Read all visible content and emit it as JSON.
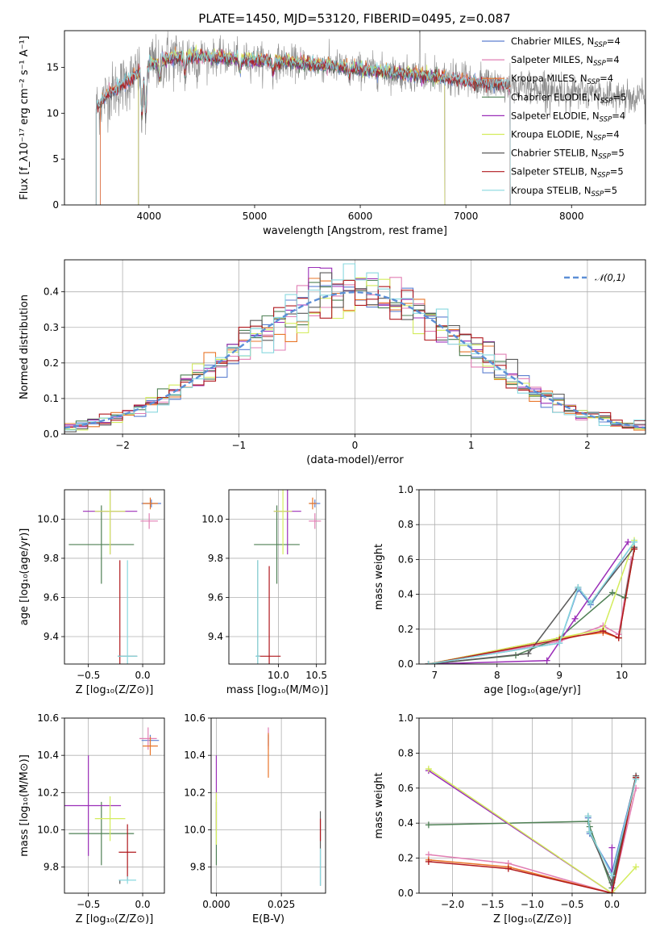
{
  "title": "PLATE=1450, MJD=53120, FIBERID=0495, z=0.087",
  "series_colors": {
    "Chabrier MILES": "#5d7fd0",
    "Salpeter MILES": "#e17fb4",
    "Kroupa MILES": "#e8762a",
    "Chabrier ELODIE": "#4f8055",
    "Salpeter ELODIE": "#9b2eb8",
    "Kroupa ELODIE": "#d3ec5c",
    "Chabrier STELIB": "#5a5a5a",
    "Salpeter STELIB": "#b0191e",
    "Kroupa STELIB": "#88d8df"
  },
  "chart_data": [
    {
      "id": "spectrum",
      "type": "line",
      "xlabel": "wavelength [Angstrom, rest frame]",
      "ylabel": "Flux [f_λ10⁻¹⁷ erg cm⁻² s⁻¹ A⁻¹]",
      "xlim": [
        3200,
        8700
      ],
      "ylim": [
        0,
        19
      ],
      "xticks": [
        4000,
        5000,
        6000,
        7000,
        8000
      ],
      "yticks": [
        0,
        5,
        10,
        15
      ],
      "grid": false,
      "legend_position": "top-right",
      "legend": [
        {
          "base": "Chabrier MILES, N",
          "sub": "SSP",
          "tail": "=4",
          "color": "#5d7fd0"
        },
        {
          "base": "Salpeter MILES, N",
          "sub": "SSP",
          "tail": "=4",
          "color": "#e17fb4"
        },
        {
          "base": "Kroupa MILES, N",
          "sub": "SSP",
          "tail": "=4",
          "color": "#e8762a"
        },
        {
          "base": "Chabrier ELODIE, N",
          "sub": "SSP",
          "tail": "=5",
          "color": "#4f8055"
        },
        {
          "base": "Salpeter ELODIE, N",
          "sub": "SSP",
          "tail": "=4",
          "color": "#9b2eb8"
        },
        {
          "base": "Kroupa ELODIE, N",
          "sub": "SSP",
          "tail": "=4",
          "color": "#d3ec5c"
        },
        {
          "base": "Chabrier STELIB, N",
          "sub": "SSP",
          "tail": "=5",
          "color": "#5a5a5a"
        },
        {
          "base": "Salpeter STELIB, N",
          "sub": "SSP",
          "tail": "=5",
          "color": "#b0191e"
        },
        {
          "base": "Kroupa STELIB, N",
          "sub": "SSP",
          "tail": "=5",
          "color": "#88d8df"
        }
      ],
      "data_color": "#8a8a8a",
      "data_range": [
        3500,
        8700
      ],
      "continuum_x": [
        3500,
        3600,
        3800,
        4000,
        4200,
        4500,
        5000,
        5500,
        6000,
        6500,
        7000,
        7500,
        8000,
        8700
      ],
      "continuum_y": [
        10.5,
        12.0,
        13.5,
        15.3,
        16.0,
        16.2,
        15.8,
        15.4,
        14.8,
        14.2,
        13.5,
        12.9,
        12.3,
        11.7
      ],
      "model_ranges": {
        "MILES": [
          3540,
          7420
        ],
        "ELODIE": [
          3900,
          6800
        ],
        "STELIB": [
          3500,
          7420
        ]
      },
      "features": [
        {
          "x": 3934,
          "depth": 6.0
        },
        {
          "x": 3969,
          "depth": 6.5
        },
        {
          "x": 4102,
          "depth": 2.5
        },
        {
          "x": 4340,
          "depth": 2.0
        },
        {
          "x": 4861,
          "depth": 1.5
        },
        {
          "x": 5175,
          "depth": 1.5
        },
        {
          "x": 5893,
          "depth": 1.2
        }
      ]
    },
    {
      "id": "residuals",
      "type": "histogram",
      "xlabel": "(data-model)/error",
      "ylabel": "Normed distribution",
      "xlim": [
        -2.5,
        2.5
      ],
      "ylim": [
        0,
        0.49
      ],
      "xticks": [
        -2,
        -1,
        0,
        1,
        2
      ],
      "yticks": [
        0.0,
        0.1,
        0.2,
        0.3,
        0.4
      ],
      "grid": true,
      "bin_width": 0.1,
      "legend_position": "top-right",
      "reference_curve": {
        "label": "𝒩(0,1)",
        "mean": 0,
        "sigma": 1,
        "color": "#5c8fd6"
      }
    },
    {
      "id": "age-vs-Z",
      "type": "errorbar",
      "xlabel": "Z [log₁₀(Z/Z⊙)]",
      "ylabel": "age  [log₁₀(age/yr)]",
      "xlim": [
        -0.72,
        0.2
      ],
      "ylim": [
        9.26,
        10.15
      ],
      "xticks": [
        -0.5,
        0.0
      ],
      "yticks": [
        9.4,
        9.6,
        9.8,
        10.0
      ],
      "grid": true,
      "points": [
        {
          "series": "Chabrier MILES",
          "x": 0.08,
          "xerr": 0.09,
          "y": 10.08,
          "yerr": 0.02
        },
        {
          "series": "Salpeter MILES",
          "x": 0.06,
          "xerr": 0.08,
          "y": 9.99,
          "yerr": 0.04
        },
        {
          "series": "Kroupa MILES",
          "x": 0.07,
          "xerr": 0.07,
          "y": 10.08,
          "yerr": 0.03
        },
        {
          "series": "Chabrier ELODIE",
          "x": -0.38,
          "xerr": 0.3,
          "y": 9.87,
          "yerr": 0.2
        },
        {
          "series": "Salpeter ELODIE",
          "x": -0.3,
          "xerr": 0.25,
          "y": 10.04,
          "yerr": 0.22
        },
        {
          "series": "Kroupa ELODIE",
          "x": -0.3,
          "xerr": 0.14,
          "y": 10.04,
          "yerr": 0.22
        },
        {
          "series": "Chabrier STELIB",
          "x": -0.14,
          "xerr": 0.09,
          "y": 9.3,
          "yerr": 0.0
        },
        {
          "series": "Salpeter STELIB",
          "x": -0.21,
          "xerr": 0.0,
          "y": 9.3,
          "yerr": 0.49
        },
        {
          "series": "Kroupa STELIB",
          "x": -0.14,
          "xerr": 0.09,
          "y": 9.3,
          "yerr": 0.49
        }
      ]
    },
    {
      "id": "age-vs-mass",
      "type": "errorbar",
      "xlabel": "mass [log₁₀(M/M⊙)]",
      "ylabel": "",
      "xlim": [
        9.35,
        10.62
      ],
      "ylim": [
        9.26,
        10.15
      ],
      "xticks": [
        10.0,
        10.5
      ],
      "yticks": [
        9.4,
        9.6,
        9.8,
        10.0
      ],
      "grid": true,
      "points": [
        {
          "series": "Chabrier MILES",
          "x": 10.48,
          "xerr": 0.07,
          "y": 10.08,
          "yerr": 0.02
        },
        {
          "series": "Salpeter MILES",
          "x": 10.48,
          "xerr": 0.08,
          "y": 9.99,
          "yerr": 0.04
        },
        {
          "series": "Kroupa MILES",
          "x": 10.45,
          "xerr": 0.05,
          "y": 10.08,
          "yerr": 0.03
        },
        {
          "series": "Chabrier ELODIE",
          "x": 9.98,
          "xerr": 0.3,
          "y": 9.87,
          "yerr": 0.2
        },
        {
          "series": "Salpeter ELODIE",
          "x": 10.12,
          "xerr": 0.18,
          "y": 10.04,
          "yerr": 0.22
        },
        {
          "series": "Kroupa ELODIE",
          "x": 10.06,
          "xerr": 0.12,
          "y": 10.04,
          "yerr": 0.22
        },
        {
          "series": "Chabrier STELIB",
          "x": 9.73,
          "xerr": 0.02,
          "y": 9.3,
          "yerr": 0.49
        },
        {
          "series": "Salpeter STELIB",
          "x": 9.88,
          "xerr": 0.15,
          "y": 9.3,
          "yerr": 0.46
        },
        {
          "series": "Kroupa STELIB",
          "x": 9.73,
          "xerr": 0.03,
          "y": 9.3,
          "yerr": 0.49
        }
      ]
    },
    {
      "id": "mass-weight-vs-age",
      "type": "line",
      "xlabel": "age  [log₁₀(age/yr)]",
      "ylabel": "mass weight",
      "xlim": [
        6.75,
        10.38
      ],
      "ylim": [
        0,
        1
      ],
      "xticks": [
        7,
        8,
        9,
        10
      ],
      "yticks": [
        0.0,
        0.2,
        0.4,
        0.6,
        0.8,
        1.0
      ],
      "grid": true,
      "series": [
        {
          "name": "Chabrier MILES",
          "x": [
            6.9,
            9.0,
            9.3,
            9.5,
            10.2
          ],
          "y": [
            0.0,
            0.12,
            0.43,
            0.34,
            0.7
          ]
        },
        {
          "name": "Salpeter MILES",
          "x": [
            6.9,
            9.0,
            9.7,
            9.95,
            10.15
          ],
          "y": [
            0.0,
            0.13,
            0.22,
            0.17,
            0.6
          ]
        },
        {
          "name": "Kroupa MILES",
          "x": [
            6.9,
            9.0,
            9.7,
            9.95,
            10.2
          ],
          "y": [
            0.0,
            0.15,
            0.18,
            0.15,
            0.66
          ]
        },
        {
          "name": "Chabrier ELODIE",
          "x": [
            6.9,
            8.3,
            9.0,
            9.85,
            10.05,
            10.2
          ],
          "y": [
            0.0,
            0.05,
            0.15,
            0.41,
            0.38,
            0.66
          ]
        },
        {
          "name": "Salpeter ELODIE",
          "x": [
            6.9,
            8.8,
            9.25,
            10.1
          ],
          "y": [
            0.0,
            0.02,
            0.26,
            0.7
          ]
        },
        {
          "name": "Kroupa ELODIE",
          "x": [
            6.9,
            9.0,
            9.7,
            10.2
          ],
          "y": [
            0.0,
            0.15,
            0.2,
            0.71
          ]
        },
        {
          "name": "Chabrier STELIB",
          "x": [
            6.9,
            8.5,
            9.3,
            9.5,
            10.2
          ],
          "y": [
            0.0,
            0.06,
            0.44,
            0.35,
            0.67
          ]
        },
        {
          "name": "Salpeter STELIB",
          "x": [
            6.9,
            9.0,
            9.7,
            9.95,
            10.2
          ],
          "y": [
            0.0,
            0.14,
            0.19,
            0.15,
            0.66
          ]
        },
        {
          "name": "Kroupa STELIB",
          "x": [
            6.9,
            9.0,
            9.3,
            9.5,
            10.2
          ],
          "y": [
            0.0,
            0.12,
            0.44,
            0.35,
            0.7
          ]
        }
      ]
    },
    {
      "id": "mass-vs-Z",
      "type": "errorbar",
      "xlabel": "Z [log₁₀(Z/Z⊙)]",
      "ylabel": "mass [log₁₀(M/M⊙)]",
      "xlim": [
        -0.72,
        0.2
      ],
      "ylim": [
        9.66,
        10.6
      ],
      "xticks": [
        -0.5,
        0.0
      ],
      "yticks": [
        9.8,
        10.0,
        10.2,
        10.4,
        10.6
      ],
      "grid": true,
      "points": [
        {
          "series": "Chabrier MILES",
          "x": 0.07,
          "xerr": 0.08,
          "y": 10.48,
          "yerr": 0.03
        },
        {
          "series": "Salpeter MILES",
          "x": 0.05,
          "xerr": 0.08,
          "y": 10.49,
          "yerr": 0.06
        },
        {
          "series": "Kroupa MILES",
          "x": 0.07,
          "xerr": 0.07,
          "y": 10.45,
          "yerr": 0.05
        },
        {
          "series": "Chabrier ELODIE",
          "x": -0.38,
          "xerr": 0.3,
          "y": 9.98,
          "yerr": 0.17
        },
        {
          "series": "Salpeter ELODIE",
          "x": -0.5,
          "xerr": 0.3,
          "y": 10.13,
          "yerr": 0.27
        },
        {
          "series": "Kroupa ELODIE",
          "x": -0.3,
          "xerr": 0.14,
          "y": 10.06,
          "yerr": 0.12
        },
        {
          "series": "Chabrier STELIB",
          "x": -0.21,
          "xerr": 0.0,
          "y": 9.72,
          "yerr": 0.01
        },
        {
          "series": "Salpeter STELIB",
          "x": -0.14,
          "xerr": 0.08,
          "y": 9.88,
          "yerr": 0.15
        },
        {
          "series": "Kroupa STELIB",
          "x": -0.14,
          "xerr": 0.08,
          "y": 9.73,
          "yerr": 0.02
        }
      ]
    },
    {
      "id": "mass-vs-ebv",
      "type": "errorbar",
      "xlabel": "E(B-V)",
      "ylabel": "",
      "xlim": [
        -0.002,
        0.042
      ],
      "ylim": [
        9.66,
        10.6
      ],
      "xticks": [
        0.0,
        0.025
      ],
      "yticks": [
        9.8,
        10.0,
        10.2,
        10.4,
        10.6
      ],
      "grid": true,
      "points": [
        {
          "series": "Chabrier MILES",
          "x": 0.02,
          "xerr": 0.0,
          "y": 10.48,
          "yerr": 0.03
        },
        {
          "series": "Salpeter MILES",
          "x": 0.02,
          "xerr": 0.0,
          "y": 10.49,
          "yerr": 0.06
        },
        {
          "series": "Kroupa MILES",
          "x": 0.02,
          "xerr": 0.0,
          "y": 10.4,
          "yerr": 0.12
        },
        {
          "series": "Chabrier ELODIE",
          "x": 0.0,
          "xerr": 0.0,
          "y": 9.98,
          "yerr": 0.17
        },
        {
          "series": "Salpeter ELODIE",
          "x": 0.0,
          "xerr": 0.0,
          "y": 10.2,
          "yerr": 0.2
        },
        {
          "series": "Kroupa ELODIE",
          "x": 0.0,
          "xerr": 0.0,
          "y": 10.06,
          "yerr": 0.14
        },
        {
          "series": "Chabrier STELIB",
          "x": 0.04,
          "xerr": 0.0,
          "y": 9.9,
          "yerr": 0.2
        },
        {
          "series": "Salpeter STELIB",
          "x": 0.04,
          "xerr": 0.0,
          "y": 10.0,
          "yerr": 0.06
        },
        {
          "series": "Kroupa STELIB",
          "x": 0.04,
          "xerr": 0.0,
          "y": 9.8,
          "yerr": 0.1
        }
      ]
    },
    {
      "id": "mass-weight-vs-Z",
      "type": "line",
      "xlabel": "Z [log₁₀(Z/Z⊙)]",
      "ylabel": "mass weight",
      "xlim": [
        -2.42,
        0.42
      ],
      "ylim": [
        0,
        1
      ],
      "xticks": [
        -2.0,
        -1.5,
        -1.0,
        -0.5,
        0.0
      ],
      "yticks": [
        0.0,
        0.2,
        0.4,
        0.6,
        0.8,
        1.0
      ],
      "grid": true,
      "series": [
        {
          "name": "Chabrier MILES",
          "x": [
            -0.3,
            -0.28,
            0.0,
            0.3
          ],
          "y": [
            0.43,
            0.34,
            0.12,
            0.66
          ]
        },
        {
          "name": "Salpeter MILES",
          "x": [
            -2.3,
            -1.3,
            0.0,
            0.3
          ],
          "y": [
            0.22,
            0.17,
            0.0,
            0.6
          ]
        },
        {
          "name": "Kroupa MILES",
          "x": [
            -2.3,
            -1.3,
            0.0,
            0.3
          ],
          "y": [
            0.19,
            0.15,
            0.0,
            0.66
          ]
        },
        {
          "name": "Chabrier ELODIE",
          "x": [
            -2.3,
            -0.3,
            -0.28,
            0.0,
            0.3
          ],
          "y": [
            0.39,
            0.41,
            0.38,
            0.03,
            0.66
          ]
        },
        {
          "name": "Salpeter ELODIE",
          "x": [
            -2.3,
            0.0,
            0.0
          ],
          "y": [
            0.7,
            0.0,
            0.26
          ]
        },
        {
          "name": "Kroupa ELODIE",
          "x": [
            -2.3,
            0.0,
            0.3
          ],
          "y": [
            0.71,
            0.0,
            0.15
          ]
        },
        {
          "name": "Chabrier STELIB",
          "x": [
            -0.3,
            -0.28,
            0.0,
            0.3
          ],
          "y": [
            0.44,
            0.35,
            0.06,
            0.67
          ]
        },
        {
          "name": "Salpeter STELIB",
          "x": [
            -2.3,
            -1.3,
            0.0,
            0.3
          ],
          "y": [
            0.18,
            0.14,
            0.0,
            0.66
          ]
        },
        {
          "name": "Kroupa STELIB",
          "x": [
            -0.3,
            -0.28,
            0.0,
            0.3
          ],
          "y": [
            0.44,
            0.35,
            0.1,
            0.65
          ]
        }
      ]
    }
  ]
}
